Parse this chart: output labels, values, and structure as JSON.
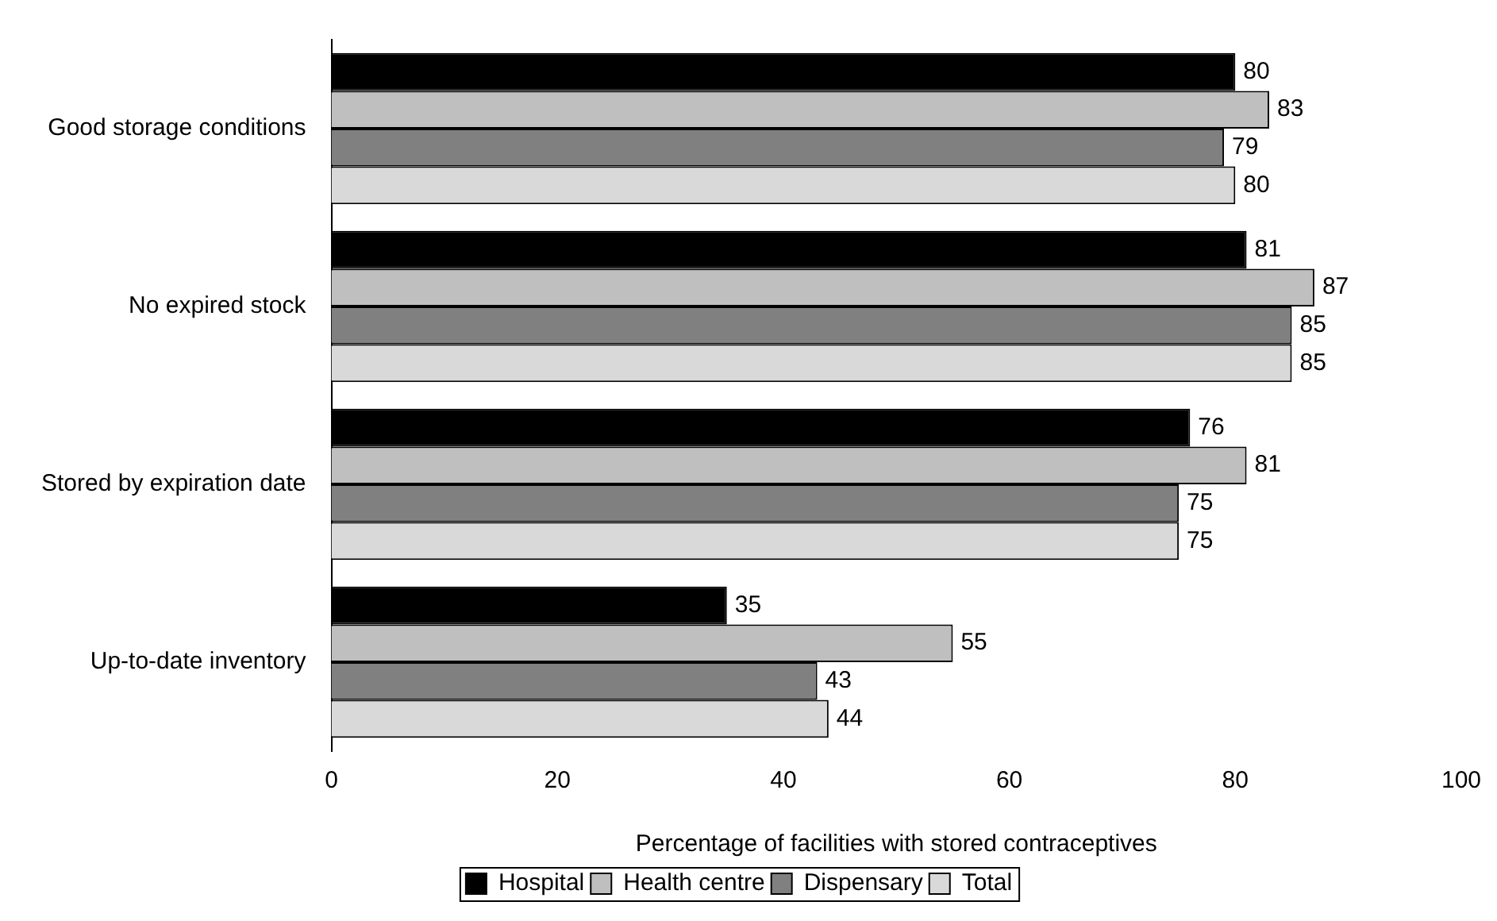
{
  "chart_data": {
    "type": "bar",
    "orientation": "horizontal",
    "xlabel": "Percentage of facilities with stored contraceptives",
    "categories": [
      "Good storage conditions",
      "No expired stock",
      "Stored by expiration date",
      "Up-to-date inventory"
    ],
    "series": [
      {
        "name": "Hospital",
        "color": "#000000",
        "values": [
          80,
          81,
          76,
          35
        ]
      },
      {
        "name": "Health centre",
        "color": "#bfbfbf",
        "values": [
          83,
          87,
          81,
          55
        ]
      },
      {
        "name": "Dispensary",
        "color": "#808080",
        "values": [
          79,
          85,
          75,
          43
        ]
      },
      {
        "name": "Total",
        "color": "#d9d9d9",
        "values": [
          80,
          85,
          75,
          44
        ]
      }
    ],
    "xlim": [
      0,
      100
    ],
    "xticks": [
      0,
      20,
      40,
      60,
      80,
      100
    ],
    "grid": false,
    "legend": "bottom",
    "data_labels": true
  }
}
